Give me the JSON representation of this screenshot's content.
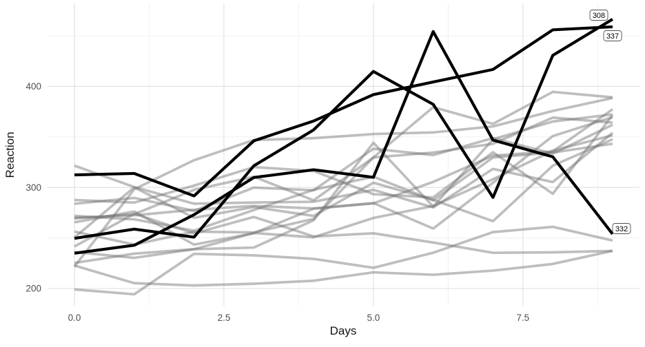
{
  "figure": {
    "background": "#ffffff"
  },
  "chart_data": {
    "type": "line",
    "title": "",
    "xlabel": "Days",
    "ylabel": "Reaction",
    "grid": "major+minor",
    "legend": "none",
    "x": [
      0,
      1,
      2,
      3,
      4,
      5,
      6,
      7,
      8,
      9
    ],
    "axes": {
      "x": {
        "range": [
          -0.45,
          9.45
        ],
        "tick_values": [
          0,
          2.5,
          5,
          7.5
        ],
        "tick_labels": [
          "0.0",
          "2.5",
          "5.0",
          "7.5"
        ],
        "minor_tick_values": [
          1.25,
          3.75,
          6.25,
          8.75
        ]
      },
      "y": {
        "range": [
          183,
          482
        ],
        "tick_values": [
          200,
          300,
          400
        ],
        "tick_labels": [
          "200",
          "300",
          "400"
        ],
        "minor_tick_values": [
          250,
          350,
          450
        ]
      }
    },
    "colors": {
      "highlight_line": "#000000",
      "muted_line": "#757575",
      "muted_line_opacity": 0.47,
      "grid_major": "#e2e2e2",
      "grid_minor": "#f0f0f0",
      "tick_text": "#4d4d4d",
      "title_text": "#141414",
      "label_text": "#000000",
      "label_border": "#4d4d4d",
      "label_bg": "#ffffff"
    },
    "highlighted_subjects": [
      "308",
      "337",
      "332"
    ],
    "end_labels": [
      "308",
      "337",
      "332"
    ],
    "series": [
      {
        "id": "308",
        "highlight": true,
        "values": [
          249.6,
          258.7,
          250.8,
          321.4,
          356.9,
          414.7,
          382.2,
          290.1,
          430.6,
          466.4
        ]
      },
      {
        "id": "309",
        "highlight": false,
        "values": [
          222.7,
          205.3,
          203.0,
          204.7,
          207.7,
          216.0,
          213.6,
          217.7,
          224.3,
          237.3
        ]
      },
      {
        "id": "310",
        "highlight": false,
        "values": [
          199.1,
          194.3,
          234.3,
          232.8,
          229.3,
          220.5,
          235.4,
          255.8,
          261.0,
          247.5
        ]
      },
      {
        "id": "330",
        "highlight": false,
        "values": [
          321.5,
          300.4,
          283.9,
          285.1,
          285.8,
          297.6,
          280.2,
          318.3,
          305.3,
          354.0
        ]
      },
      {
        "id": "331",
        "highlight": false,
        "values": [
          287.6,
          285.0,
          301.8,
          320.1,
          316.3,
          293.3,
          290.1,
          334.8,
          293.7,
          371.6
        ]
      },
      {
        "id": "332",
        "highlight": true,
        "values": [
          234.9,
          242.8,
          273.0,
          309.8,
          317.5,
          310.0,
          454.2,
          346.8,
          330.3,
          253.9
        ]
      },
      {
        "id": "333",
        "highlight": false,
        "values": [
          283.8,
          289.6,
          276.8,
          299.8,
          297.2,
          338.2,
          332.0,
          348.8,
          333.4,
          362.0
        ]
      },
      {
        "id": "334",
        "highlight": false,
        "values": [
          265.5,
          276.2,
          243.4,
          254.7,
          279.0,
          284.2,
          305.5,
          331.5,
          335.7,
          377.3
        ]
      },
      {
        "id": "335",
        "highlight": false,
        "values": [
          241.6,
          273.9,
          254.5,
          270.8,
          251.5,
          254.6,
          245.5,
          235.3,
          235.8,
          237.2
        ]
      },
      {
        "id": "337",
        "highlight": true,
        "values": [
          312.4,
          313.8,
          291.6,
          346.1,
          365.7,
          391.8,
          404.3,
          416.7,
          455.9,
          458.9
        ]
      },
      {
        "id": "349",
        "highlight": false,
        "values": [
          236.1,
          230.3,
          238.9,
          254.9,
          250.7,
          269.8,
          281.6,
          308.1,
          336.3,
          351.6
        ]
      },
      {
        "id": "350",
        "highlight": false,
        "values": [
          256.3,
          243.5,
          256.2,
          255.5,
          268.9,
          329.7,
          379.4,
          362.9,
          394.5,
          389.1
        ]
      },
      {
        "id": "351",
        "highlight": false,
        "values": [
          250.5,
          300.1,
          269.9,
          280.6,
          271.8,
          304.6,
          287.7,
          266.6,
          321.5,
          347.6
        ]
      },
      {
        "id": "352",
        "highlight": false,
        "values": [
          221.7,
          298.2,
          326.9,
          346.9,
          348.7,
          352.8,
          354.4,
          360.4,
          375.6,
          388.5
        ]
      },
      {
        "id": "369",
        "highlight": false,
        "values": [
          271.9,
          268.4,
          257.2,
          277.7,
          297.6,
          310.6,
          287.2,
          329.6,
          334.5,
          343.2
        ]
      },
      {
        "id": "370",
        "highlight": false,
        "values": [
          225.3,
          234.5,
          238.9,
          240.5,
          267.5,
          344.2,
          281.1,
          347.6,
          365.2,
          372.2
        ]
      },
      {
        "id": "371",
        "highlight": false,
        "values": [
          269.9,
          272.4,
          277.9,
          281.8,
          279.2,
          284.5,
          259.3,
          304.6,
          350.8,
          369.5
        ]
      },
      {
        "id": "372",
        "highlight": false,
        "values": [
          269.4,
          273.5,
          297.6,
          310.6,
          287.2,
          329.6,
          334.5,
          343.2,
          369.1,
          364.1
        ]
      }
    ]
  }
}
